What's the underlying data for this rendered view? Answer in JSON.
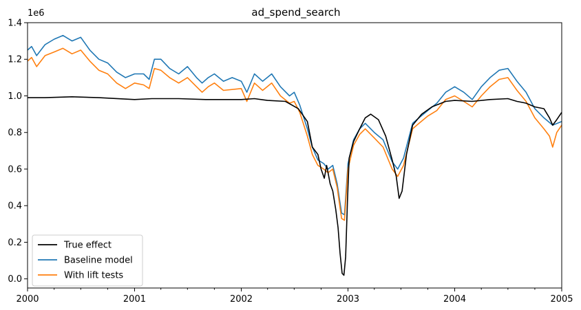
{
  "chart_data": {
    "type": "line",
    "title": "ad_spend_search",
    "xlabel": "",
    "ylabel": "",
    "y_offset_label": "1e6",
    "x_range": [
      "2000-01-01",
      "2005-01-01"
    ],
    "ylim": [
      -0.05,
      1.4
    ],
    "x_ticks": [
      {
        "date": "2000-01-01",
        "label": "2000"
      },
      {
        "date": "2001-01-01",
        "label": "2001"
      },
      {
        "date": "2002-01-01",
        "label": "2002"
      },
      {
        "date": "2003-01-01",
        "label": "2003"
      },
      {
        "date": "2004-01-01",
        "label": "2004"
      },
      {
        "date": "2005-01-01",
        "label": "2005"
      }
    ],
    "y_ticks": [
      {
        "value": 0.0,
        "label": "0.0"
      },
      {
        "value": 0.2,
        "label": "0.2"
      },
      {
        "value": 0.4,
        "label": "0.4"
      },
      {
        "value": 0.6,
        "label": "0.6"
      },
      {
        "value": 0.8,
        "label": "0.8"
      },
      {
        "value": 1.0,
        "label": "1.0"
      },
      {
        "value": 1.2,
        "label": "1.2"
      },
      {
        "value": 1.4,
        "label": "1.4"
      }
    ],
    "grid": false,
    "legend_position": "bottom-left",
    "series": [
      {
        "name": "True effect",
        "color": "#000000",
        "points": [
          [
            "2000-01-01",
            0.99
          ],
          [
            "2000-03-01",
            0.99
          ],
          [
            "2000-06-01",
            0.995
          ],
          [
            "2000-09-01",
            0.99
          ],
          [
            "2001-01-01",
            0.98
          ],
          [
            "2001-03-01",
            0.985
          ],
          [
            "2001-06-01",
            0.985
          ],
          [
            "2001-09-01",
            0.98
          ],
          [
            "2002-01-01",
            0.98
          ],
          [
            "2002-02-15",
            0.985
          ],
          [
            "2002-04-01",
            0.975
          ],
          [
            "2002-06-01",
            0.97
          ],
          [
            "2002-07-15",
            0.93
          ],
          [
            "2002-08-15",
            0.86
          ],
          [
            "2002-09-01",
            0.72
          ],
          [
            "2002-09-20",
            0.68
          ],
          [
            "2002-10-01",
            0.6
          ],
          [
            "2002-10-12",
            0.55
          ],
          [
            "2002-10-20",
            0.62
          ],
          [
            "2002-11-01",
            0.52
          ],
          [
            "2002-11-10",
            0.48
          ],
          [
            "2002-11-20",
            0.38
          ],
          [
            "2002-11-28",
            0.28
          ],
          [
            "2002-12-05",
            0.14
          ],
          [
            "2002-12-12",
            0.03
          ],
          [
            "2002-12-18",
            0.02
          ],
          [
            "2002-12-24",
            0.12
          ],
          [
            "2002-12-30",
            0.42
          ],
          [
            "2003-01-05",
            0.66
          ],
          [
            "2003-01-20",
            0.75
          ],
          [
            "2003-02-10",
            0.82
          ],
          [
            "2003-03-01",
            0.88
          ],
          [
            "2003-03-20",
            0.9
          ],
          [
            "2003-04-15",
            0.87
          ],
          [
            "2003-05-10",
            0.78
          ],
          [
            "2003-06-01",
            0.65
          ],
          [
            "2003-06-15",
            0.56
          ],
          [
            "2003-06-25",
            0.44
          ],
          [
            "2003-07-05",
            0.48
          ],
          [
            "2003-07-20",
            0.68
          ],
          [
            "2003-08-10",
            0.84
          ],
          [
            "2003-09-10",
            0.9
          ],
          [
            "2003-10-15",
            0.94
          ],
          [
            "2003-12-01",
            0.97
          ],
          [
            "2004-01-01",
            0.975
          ],
          [
            "2004-03-01",
            0.97
          ],
          [
            "2004-05-01",
            0.98
          ],
          [
            "2004-07-01",
            0.985
          ],
          [
            "2004-08-01",
            0.97
          ],
          [
            "2004-09-01",
            0.96
          ],
          [
            "2004-10-01",
            0.94
          ],
          [
            "2004-11-01",
            0.93
          ],
          [
            "2004-11-20",
            0.88
          ],
          [
            "2004-12-01",
            0.84
          ],
          [
            "2004-12-15",
            0.87
          ],
          [
            "2005-01-01",
            0.91
          ]
        ]
      },
      {
        "name": "Baseline model",
        "color": "#1f77b4",
        "points": [
          [
            "2000-01-01",
            1.25
          ],
          [
            "2000-01-15",
            1.27
          ],
          [
            "2000-02-01",
            1.22
          ],
          [
            "2000-03-01",
            1.28
          ],
          [
            "2000-04-01",
            1.31
          ],
          [
            "2000-05-01",
            1.33
          ],
          [
            "2000-06-01",
            1.3
          ],
          [
            "2000-07-01",
            1.32
          ],
          [
            "2000-08-01",
            1.25
          ],
          [
            "2000-09-01",
            1.2
          ],
          [
            "2000-10-01",
            1.18
          ],
          [
            "2000-11-01",
            1.13
          ],
          [
            "2000-12-01",
            1.1
          ],
          [
            "2001-01-01",
            1.12
          ],
          [
            "2001-02-01",
            1.12
          ],
          [
            "2001-02-20",
            1.09
          ],
          [
            "2001-03-10",
            1.2
          ],
          [
            "2001-04-01",
            1.2
          ],
          [
            "2001-05-01",
            1.15
          ],
          [
            "2001-06-01",
            1.12
          ],
          [
            "2001-07-01",
            1.16
          ],
          [
            "2001-08-01",
            1.1
          ],
          [
            "2001-08-20",
            1.07
          ],
          [
            "2001-09-10",
            1.1
          ],
          [
            "2001-10-01",
            1.12
          ],
          [
            "2001-11-01",
            1.08
          ],
          [
            "2001-12-01",
            1.1
          ],
          [
            "2002-01-01",
            1.08
          ],
          [
            "2002-01-20",
            1.02
          ],
          [
            "2002-02-15",
            1.12
          ],
          [
            "2002-03-15",
            1.08
          ],
          [
            "2002-04-15",
            1.12
          ],
          [
            "2002-05-15",
            1.05
          ],
          [
            "2002-06-15",
            1.0
          ],
          [
            "2002-07-01",
            1.02
          ],
          [
            "2002-07-20",
            0.95
          ],
          [
            "2002-08-15",
            0.82
          ],
          [
            "2002-09-01",
            0.72
          ],
          [
            "2002-09-20",
            0.65
          ],
          [
            "2002-10-10",
            0.63
          ],
          [
            "2002-10-25",
            0.6
          ],
          [
            "2002-11-10",
            0.62
          ],
          [
            "2002-11-25",
            0.52
          ],
          [
            "2002-12-10",
            0.36
          ],
          [
            "2002-12-20",
            0.35
          ],
          [
            "2003-01-01",
            0.63
          ],
          [
            "2003-01-20",
            0.76
          ],
          [
            "2003-02-10",
            0.82
          ],
          [
            "2003-03-01",
            0.85
          ],
          [
            "2003-04-01",
            0.8
          ],
          [
            "2003-05-01",
            0.76
          ],
          [
            "2003-06-01",
            0.64
          ],
          [
            "2003-06-20",
            0.6
          ],
          [
            "2003-07-10",
            0.66
          ],
          [
            "2003-08-10",
            0.85
          ],
          [
            "2003-09-01",
            0.88
          ],
          [
            "2003-10-01",
            0.92
          ],
          [
            "2003-11-01",
            0.96
          ],
          [
            "2003-12-01",
            1.02
          ],
          [
            "2004-01-01",
            1.05
          ],
          [
            "2004-02-01",
            1.02
          ],
          [
            "2004-03-01",
            0.98
          ],
          [
            "2004-04-01",
            1.05
          ],
          [
            "2004-05-01",
            1.1
          ],
          [
            "2004-06-01",
            1.14
          ],
          [
            "2004-07-01",
            1.15
          ],
          [
            "2004-08-01",
            1.08
          ],
          [
            "2004-09-01",
            1.02
          ],
          [
            "2004-10-01",
            0.93
          ],
          [
            "2004-11-01",
            0.88
          ],
          [
            "2004-12-01",
            0.84
          ],
          [
            "2005-01-01",
            0.86
          ]
        ]
      },
      {
        "name": "With lift tests",
        "color": "#ff7f0e",
        "points": [
          [
            "2000-01-01",
            1.19
          ],
          [
            "2000-01-15",
            1.21
          ],
          [
            "2000-02-01",
            1.16
          ],
          [
            "2000-03-01",
            1.22
          ],
          [
            "2000-04-01",
            1.24
          ],
          [
            "2000-05-01",
            1.26
          ],
          [
            "2000-06-01",
            1.23
          ],
          [
            "2000-07-01",
            1.25
          ],
          [
            "2000-08-01",
            1.19
          ],
          [
            "2000-09-01",
            1.14
          ],
          [
            "2000-10-01",
            1.12
          ],
          [
            "2000-11-01",
            1.07
          ],
          [
            "2000-12-01",
            1.04
          ],
          [
            "2001-01-01",
            1.07
          ],
          [
            "2001-02-01",
            1.06
          ],
          [
            "2001-02-20",
            1.04
          ],
          [
            "2001-03-10",
            1.15
          ],
          [
            "2001-04-01",
            1.14
          ],
          [
            "2001-05-01",
            1.1
          ],
          [
            "2001-06-01",
            1.07
          ],
          [
            "2001-07-01",
            1.1
          ],
          [
            "2001-08-01",
            1.05
          ],
          [
            "2001-08-20",
            1.02
          ],
          [
            "2001-09-10",
            1.05
          ],
          [
            "2001-10-01",
            1.07
          ],
          [
            "2001-11-01",
            1.03
          ],
          [
            "2002-01-01",
            1.04
          ],
          [
            "2002-01-20",
            0.97
          ],
          [
            "2002-02-15",
            1.07
          ],
          [
            "2002-03-15",
            1.03
          ],
          [
            "2002-04-15",
            1.07
          ],
          [
            "2002-05-15",
            1.0
          ],
          [
            "2002-06-15",
            0.96
          ],
          [
            "2002-07-01",
            0.97
          ],
          [
            "2002-07-20",
            0.91
          ],
          [
            "2002-08-15",
            0.78
          ],
          [
            "2002-09-01",
            0.68
          ],
          [
            "2002-09-20",
            0.62
          ],
          [
            "2002-10-10",
            0.6
          ],
          [
            "2002-10-25",
            0.58
          ],
          [
            "2002-11-10",
            0.6
          ],
          [
            "2002-11-25",
            0.5
          ],
          [
            "2002-12-10",
            0.33
          ],
          [
            "2002-12-20",
            0.32
          ],
          [
            "2003-01-01",
            0.6
          ],
          [
            "2003-01-20",
            0.73
          ],
          [
            "2003-02-10",
            0.79
          ],
          [
            "2003-03-01",
            0.82
          ],
          [
            "2003-04-01",
            0.77
          ],
          [
            "2003-05-01",
            0.72
          ],
          [
            "2003-06-01",
            0.6
          ],
          [
            "2003-06-20",
            0.56
          ],
          [
            "2003-07-10",
            0.62
          ],
          [
            "2003-08-10",
            0.82
          ],
          [
            "2003-09-01",
            0.85
          ],
          [
            "2003-10-01",
            0.89
          ],
          [
            "2003-11-01",
            0.92
          ],
          [
            "2003-12-01",
            0.98
          ],
          [
            "2004-01-01",
            1.0
          ],
          [
            "2004-02-01",
            0.97
          ],
          [
            "2004-03-01",
            0.94
          ],
          [
            "2004-04-01",
            1.0
          ],
          [
            "2004-05-01",
            1.05
          ],
          [
            "2004-06-01",
            1.09
          ],
          [
            "2004-07-01",
            1.1
          ],
          [
            "2004-08-01",
            1.03
          ],
          [
            "2004-09-01",
            0.97
          ],
          [
            "2004-10-01",
            0.88
          ],
          [
            "2004-11-01",
            0.82
          ],
          [
            "2004-11-20",
            0.78
          ],
          [
            "2004-12-01",
            0.72
          ],
          [
            "2004-12-15",
            0.8
          ],
          [
            "2005-01-01",
            0.84
          ]
        ]
      }
    ]
  }
}
